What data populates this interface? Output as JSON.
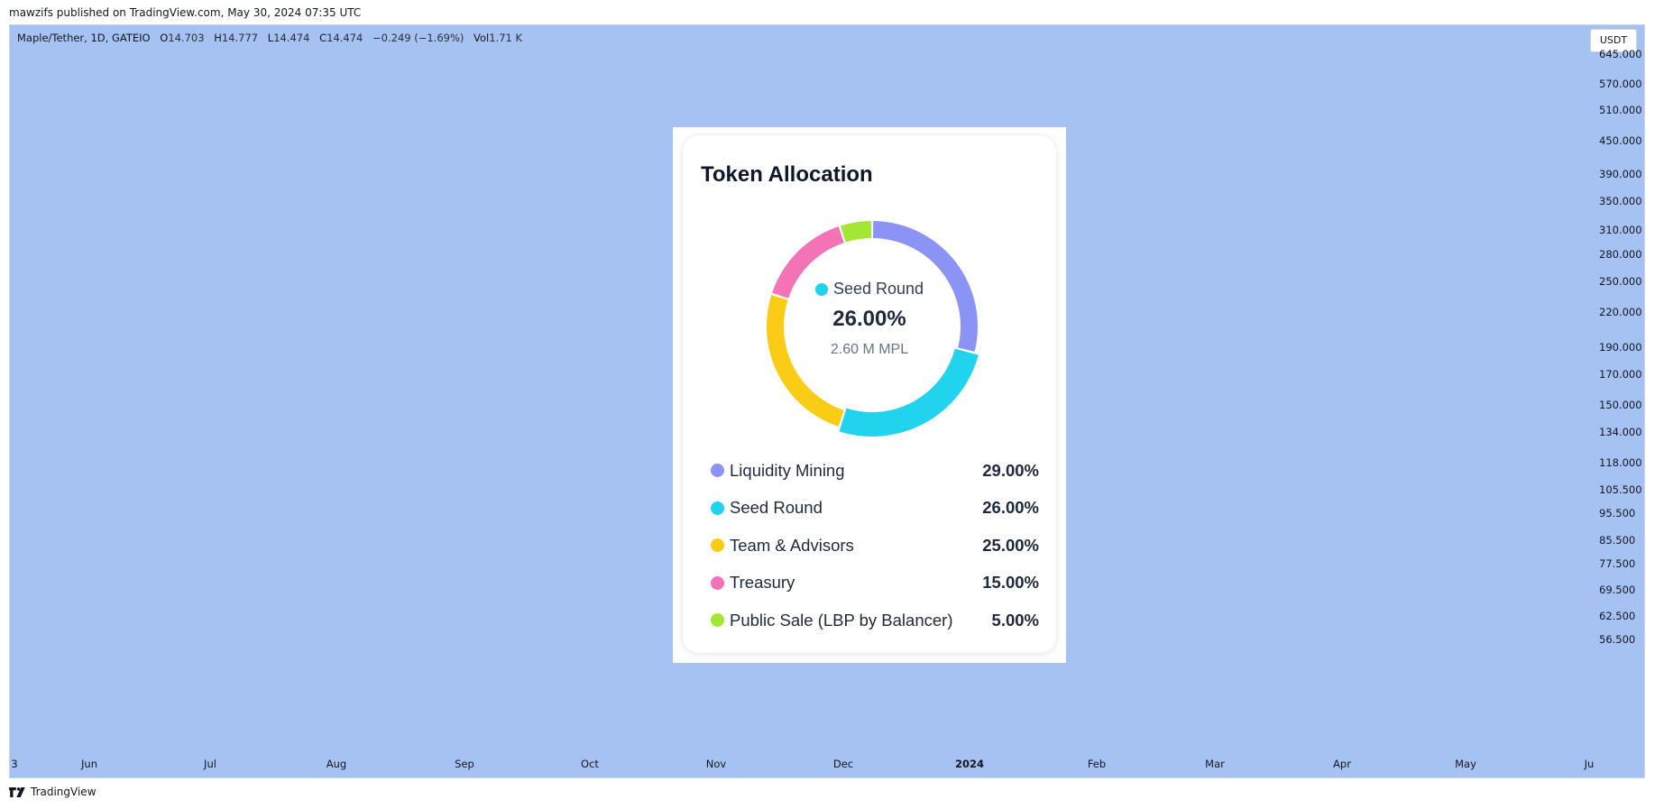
{
  "credit": "mawzifs published on TradingView.com, May 30, 2024 07:35 UTC",
  "symbol": {
    "name": "Maple/Tether, 1D, GATEIO",
    "open_label": "O",
    "open": "14.703",
    "high_label": "H",
    "high": "14.777",
    "low_label": "L",
    "low": "14.474",
    "close_label": "C",
    "close": "14.474",
    "change": "−0.249 (−1.69%)",
    "vol_label": "Vol",
    "vol": "1.71 K"
  },
  "currency_button": "USDT",
  "price_axis": [
    "645.000",
    "570.000",
    "510.000",
    "450.000",
    "390.000",
    "350.000",
    "310.000",
    "280.000",
    "250.000",
    "220.000",
    "190.000",
    "170.000",
    "150.000",
    "134.000",
    "118.000",
    "105.500",
    "95.500",
    "85.500",
    "77.500",
    "69.500",
    "62.500",
    "56.500"
  ],
  "time_axis": [
    "3",
    "Jun",
    "Jul",
    "Aug",
    "Sep",
    "Oct",
    "Nov",
    "Dec",
    "2024",
    "Feb",
    "Mar",
    "Apr",
    "May",
    "Ju"
  ],
  "footer_logo": "TradingView",
  "card": {
    "title": "Token Allocation",
    "center": {
      "name": "Seed Round",
      "percent": "26.00%",
      "amount": "2.60 M MPL",
      "color": "#22d3ee"
    },
    "allocations": [
      {
        "label": "Liquidity Mining",
        "percent": "29.00%",
        "value": 29,
        "color": "#8b93f5"
      },
      {
        "label": "Seed Round",
        "percent": "26.00%",
        "value": 26,
        "color": "#22d3ee"
      },
      {
        "label": "Team & Advisors",
        "percent": "25.00%",
        "value": 25,
        "color": "#facc15"
      },
      {
        "label": "Treasury",
        "percent": "15.00%",
        "value": 15,
        "color": "#f472b6"
      },
      {
        "label": "Public Sale (LBP by Balancer)",
        "percent": "5.00%",
        "value": 5,
        "color": "#a3e635"
      }
    ]
  },
  "colors": {
    "chart_background": "#a5c2f2"
  }
}
